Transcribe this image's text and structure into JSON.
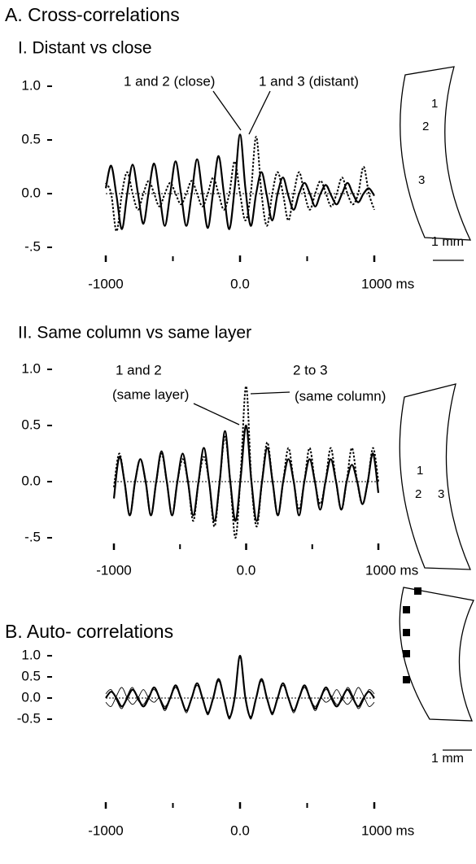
{
  "chart_data": [
    {
      "type": "line",
      "section": "A. Cross-correlations",
      "title": "I. Distant vs close",
      "xlim": [
        -1000,
        1000
      ],
      "xticks": [
        -1000,
        {
          "value": 0,
          "label": "0.0"
        },
        {
          "value": 1000,
          "label": "1000 ms"
        }
      ],
      "xminor": [
        -500,
        500
      ],
      "ylim": [
        -0.5,
        1.0
      ],
      "yticks": [
        {
          "value": 1,
          "label": "1.0"
        },
        {
          "value": 0.5,
          "label": "0.5"
        },
        {
          "value": 0,
          "label": "0.0"
        },
        {
          "value": -0.5,
          "label": "-.5"
        }
      ],
      "x": [
        -1000,
        -960,
        -920,
        -880,
        -840,
        -800,
        -760,
        -720,
        -680,
        -640,
        -600,
        -560,
        -520,
        -480,
        -440,
        -400,
        -360,
        -320,
        -280,
        -240,
        -200,
        -160,
        -120,
        -80,
        -40,
        0,
        40,
        80,
        120,
        160,
        200,
        240,
        280,
        320,
        360,
        400,
        440,
        480,
        520,
        560,
        600,
        640,
        680,
        720,
        760,
        800,
        840,
        880,
        920,
        960,
        1000
      ],
      "series": [
        {
          "style": "solid",
          "color": "#000000",
          "values": [
            0.05,
            0.26,
            -0.02,
            -0.33,
            0,
            0.27,
            0,
            -0.28,
            0.02,
            0.28,
            -0.01,
            -0.3,
            0,
            0.3,
            0,
            -0.3,
            0,
            0.32,
            0,
            -0.32,
            0.02,
            0.35,
            0,
            -0.33,
            0.05,
            0.55,
            0.05,
            -0.3,
            0,
            0.2,
            -0.02,
            -0.25,
            0,
            0.15,
            -0.02,
            -0.15,
            0,
            0.1,
            0,
            -0.12,
            0,
            0.08,
            -0.02,
            -0.1,
            0,
            0.1,
            0,
            -0.08,
            0,
            0.05,
            -0.02
          ]
        },
        {
          "style": "dotted",
          "color": "#000000",
          "values": [
            0.1,
            0,
            -0.35,
            0,
            0.2,
            0,
            -0.15,
            0,
            0.12,
            0,
            -0.12,
            0,
            0.1,
            0,
            -0.1,
            0,
            0.12,
            0,
            -0.12,
            0,
            0.15,
            0,
            -0.15,
            0,
            0.3,
            0,
            -0.25,
            0,
            0.53,
            0,
            -0.3,
            0,
            0.2,
            0,
            -0.25,
            0,
            0.2,
            0,
            -0.15,
            0,
            0.12,
            0,
            -0.12,
            0,
            0.15,
            0,
            -0.1,
            0,
            0.25,
            0,
            -0.15
          ]
        }
      ],
      "annotations": [
        "1 and 2 (close)",
        "1 and 3 (distant)"
      ],
      "diagram_labels": [
        "1",
        "2",
        "3"
      ],
      "scale_label": "1 mm"
    },
    {
      "type": "line",
      "title": "II. Same column vs same layer",
      "xlim": [
        -1000,
        1000
      ],
      "xticks": [
        -1000,
        {
          "value": 0,
          "label": "0.0"
        },
        {
          "value": 1000,
          "label": "1000 ms"
        }
      ],
      "xminor": [
        -500,
        500
      ],
      "ylim": [
        -0.5,
        1.0
      ],
      "yticks": [
        {
          "value": 1,
          "label": "1.0"
        },
        {
          "value": 0.5,
          "label": "0.5"
        },
        {
          "value": 0,
          "label": "0.0"
        },
        {
          "value": -0.5,
          "label": "-.5"
        }
      ],
      "x": [
        -1000,
        -960,
        -920,
        -880,
        -840,
        -800,
        -760,
        -720,
        -680,
        -640,
        -600,
        -560,
        -520,
        -480,
        -440,
        -400,
        -360,
        -320,
        -280,
        -240,
        -200,
        -160,
        -120,
        -80,
        -40,
        0,
        40,
        80,
        120,
        160,
        200,
        240,
        280,
        320,
        360,
        400,
        440,
        480,
        520,
        560,
        600,
        640,
        680,
        720,
        760,
        800,
        840,
        880,
        920,
        960,
        1000
      ],
      "series": [
        {
          "style": "solid",
          "color": "#000000",
          "values": [
            -0.15,
            0.22,
            0,
            -0.3,
            0,
            0.2,
            0,
            -0.3,
            0,
            0.27,
            0,
            -0.3,
            0,
            0.25,
            0,
            -0.3,
            0,
            0.3,
            0,
            -0.35,
            0,
            0.45,
            0,
            -0.35,
            0.05,
            0.5,
            0,
            -0.35,
            0,
            0.3,
            0,
            -0.3,
            0,
            0.2,
            0,
            -0.3,
            0,
            0.2,
            0,
            -0.25,
            0,
            0.2,
            0,
            -0.25,
            0,
            0.15,
            0,
            -0.2,
            0,
            0.25,
            -0.1
          ]
        },
        {
          "style": "dotted",
          "color": "#000000",
          "values": [
            -0.05,
            0.25,
            0,
            -0.3,
            0,
            0.2,
            0,
            -0.3,
            0,
            0.25,
            0,
            -0.3,
            0,
            0.2,
            0,
            -0.35,
            0,
            0.22,
            0,
            -0.4,
            0,
            0.4,
            0,
            -0.5,
            0.1,
            0.85,
            0,
            -0.4,
            0,
            0.35,
            0,
            -0.3,
            0,
            0.3,
            0,
            -0.25,
            0,
            0.3,
            0,
            -0.2,
            0,
            0.3,
            0,
            -0.25,
            0,
            0.3,
            0,
            -0.2,
            0,
            0.3,
            0
          ]
        }
      ],
      "annotations": [
        "1 and  2",
        "(same layer)",
        "2 to 3",
        "(same column)"
      ],
      "diagram_labels": [
        "1",
        "2",
        "3"
      ]
    },
    {
      "type": "line",
      "title": "B. Auto- correlations",
      "xlim": [
        -1000,
        1000
      ],
      "xticks": [
        -1000,
        {
          "value": 0,
          "label": "0.0"
        },
        {
          "value": 1000,
          "label": "1000 ms"
        }
      ],
      "xminor": [
        -500,
        500
      ],
      "ylim": [
        -0.5,
        1.0
      ],
      "yticks": [
        {
          "value": 1,
          "label": "1.0"
        },
        {
          "value": 0.5,
          "label": "0.5"
        },
        {
          "value": 0,
          "label": "0.0"
        },
        {
          "value": -0.5,
          "label": "-0.5"
        }
      ],
      "x": [
        -1000,
        -960,
        -920,
        -880,
        -840,
        -800,
        -760,
        -720,
        -680,
        -640,
        -600,
        -560,
        -520,
        -480,
        -440,
        -400,
        -360,
        -320,
        -280,
        -240,
        -200,
        -160,
        -120,
        -80,
        -40,
        0,
        40,
        80,
        120,
        160,
        200,
        240,
        280,
        320,
        360,
        400,
        440,
        480,
        520,
        560,
        600,
        640,
        680,
        720,
        760,
        800,
        840,
        880,
        920,
        960,
        1000
      ],
      "series": [
        {
          "style": "thin",
          "color": "#000000",
          "values": [
            0.1,
            0.2,
            -0.05,
            -0.25,
            0.05,
            0.25,
            -0.05,
            -0.15,
            0.05,
            0.2,
            0,
            -0.3,
            0,
            0.25,
            0,
            -0.35,
            0,
            0.3,
            0,
            -0.4,
            0,
            0.4,
            0,
            -0.5,
            0,
            0.95,
            0,
            -0.5,
            0,
            0.4,
            0,
            -0.4,
            0,
            0.3,
            0,
            -0.35,
            0,
            0.25,
            0,
            -0.3,
            0,
            0.2,
            0.05,
            -0.15,
            -0.05,
            0.25,
            0.05,
            -0.25,
            -0.05,
            0.2,
            0.1
          ]
        },
        {
          "style": "thin",
          "color": "#000000",
          "values": [
            -0.1,
            -0.2,
            0.05,
            0.25,
            0,
            -0.15,
            0,
            0.2,
            0,
            -0.1,
            0,
            -0.2,
            0,
            0.25,
            0,
            -0.3,
            0,
            0.3,
            0,
            -0.38,
            0,
            0.42,
            0,
            -0.48,
            0,
            0.98,
            0,
            -0.48,
            0,
            0.42,
            0,
            -0.38,
            0,
            0.3,
            0,
            -0.3,
            0,
            0.25,
            0,
            -0.2,
            0,
            -0.1,
            0,
            0.2,
            0,
            -0.15,
            0,
            0.25,
            0.05,
            -0.2,
            -0.1
          ]
        },
        {
          "style": "solid",
          "color": "#000000",
          "values": [
            0,
            0.15,
            0,
            -0.2,
            0,
            0.2,
            0,
            -0.2,
            0,
            0.25,
            0,
            -0.25,
            0,
            0.3,
            0,
            -0.3,
            0,
            0.35,
            0,
            -0.35,
            0,
            0.45,
            0,
            -0.45,
            0,
            1.0,
            0,
            -0.45,
            0,
            0.45,
            0,
            -0.35,
            0,
            0.35,
            0,
            -0.3,
            0,
            0.3,
            0,
            -0.25,
            0,
            0.25,
            0,
            -0.2,
            0,
            0.2,
            0,
            -0.2,
            0,
            0.15,
            0
          ]
        }
      ],
      "scale_label": "1 mm"
    }
  ]
}
